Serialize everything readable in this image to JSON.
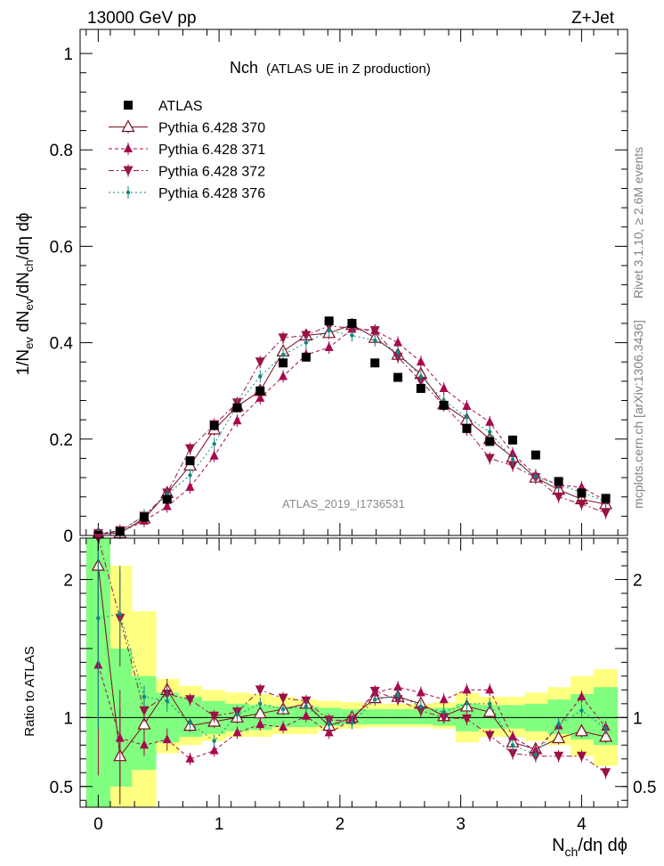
{
  "header": {
    "left": "13000 GeV pp",
    "right": "Z+Jet"
  },
  "main_title": {
    "main": "Nch",
    "sub": "(ATLAS UE in Z production)"
  },
  "ylabel_top": {
    "a": "1/N",
    "a_sub": "ev",
    "b": " dN",
    "b_sub": "ev",
    "c": "/dN",
    "c_sub": "ch",
    "d": "/dη dϕ"
  },
  "ylabel_ratio": "Ratio to ATLAS",
  "xlabel": {
    "a": "N",
    "a_sub": "ch",
    "b": "/dη dϕ"
  },
  "watermark": "ATLAS_2019_I1736531",
  "side_text": {
    "rivet_a": "Rivet 3.1.10, ",
    "rivet_b": "≥ 2.6M events",
    "mcplots": "mcplots.cern.ch [arXiv:1306.3436]"
  },
  "colors": {
    "atlas": "#000000",
    "p370": "#7b0c1e",
    "p371": "#a8084f",
    "p372": "#9b1246",
    "p376": "#11877f",
    "band_yellow": "#ffff80",
    "band_green": "#80ff80"
  },
  "chart_data": [
    {
      "type": "scatter",
      "panel": "main",
      "xlim": [
        -0.15,
        4.38
      ],
      "ylim": [
        0,
        1.05
      ],
      "yticks": [
        0,
        0.2,
        0.4,
        0.6,
        0.8,
        1
      ],
      "ytick_labels": [
        "0",
        "0.2",
        "0.4",
        "0.6",
        "0.8",
        "1"
      ],
      "x": [
        0,
        0.18,
        0.38,
        0.57,
        0.76,
        0.96,
        1.15,
        1.34,
        1.53,
        1.72,
        1.91,
        2.1,
        2.29,
        2.48,
        2.67,
        2.86,
        3.05,
        3.24,
        3.43,
        3.62,
        3.81,
        4.0,
        4.2
      ],
      "series": [
        {
          "name": "ATLAS",
          "marker": "square",
          "values": [
            0.0,
            0.008,
            0.038,
            0.075,
            0.155,
            0.228,
            0.265,
            0.3,
            0.358,
            0.37,
            0.445,
            0.44,
            0.358,
            0.328,
            0.305,
            0.27,
            0.222,
            0.195,
            0.198,
            0.167,
            0.112,
            0.088,
            0.077
          ]
        },
        {
          "name": "Pythia 6.428 370",
          "marker": "triangle-open",
          "values": [
            0.003,
            0.005,
            0.035,
            0.088,
            0.145,
            0.22,
            0.268,
            0.3,
            0.382,
            0.415,
            0.42,
            0.437,
            0.41,
            0.375,
            0.335,
            0.272,
            0.24,
            0.2,
            0.162,
            0.12,
            0.095,
            0.075,
            0.065
          ]
        },
        {
          "name": "Pythia 6.428 371",
          "marker": "triangle-up",
          "values": [
            0.004,
            0.007,
            0.03,
            0.06,
            0.1,
            0.165,
            0.238,
            0.285,
            0.33,
            0.375,
            0.39,
            0.428,
            0.425,
            0.4,
            0.36,
            0.305,
            0.268,
            0.235,
            0.17,
            0.125,
            0.105,
            0.1,
            0.072
          ]
        },
        {
          "name": "Pythia 6.428 372",
          "marker": "triangle-down",
          "values": [
            0.004,
            0.01,
            0.04,
            0.088,
            0.18,
            0.23,
            0.275,
            0.36,
            0.41,
            0.415,
            0.435,
            0.43,
            0.425,
            0.37,
            0.32,
            0.27,
            0.22,
            0.16,
            0.145,
            0.12,
            0.08,
            0.065,
            0.047
          ]
        },
        {
          "name": "Pythia 6.428 376",
          "marker": "dot",
          "values": [
            0.003,
            0.006,
            0.042,
            0.085,
            0.125,
            0.19,
            0.27,
            0.33,
            0.375,
            0.4,
            0.425,
            0.415,
            0.405,
            0.38,
            0.33,
            0.28,
            0.245,
            0.215,
            0.158,
            0.122,
            0.105,
            0.09,
            0.07
          ]
        }
      ]
    },
    {
      "type": "scatter",
      "panel": "ratio",
      "xlim": [
        -0.15,
        4.38
      ],
      "ylim": [
        0.35,
        2.3
      ],
      "yticks": [
        0.5,
        1,
        1.5,
        2
      ],
      "ytick_labels": [
        "0.5",
        "1",
        "2"
      ],
      "labeled_yticks": [
        0.5,
        1,
        2
      ],
      "xticks": [
        0,
        1,
        2,
        3,
        4
      ],
      "xtick_labels": [
        "0",
        "1",
        "2",
        "3",
        "4"
      ],
      "x": [
        0,
        0.18,
        0.38,
        0.57,
        0.76,
        0.96,
        1.15,
        1.34,
        1.53,
        1.72,
        1.91,
        2.1,
        2.29,
        2.48,
        2.67,
        2.86,
        3.05,
        3.24,
        3.43,
        3.62,
        3.81,
        4.0,
        4.2
      ],
      "bands": {
        "edges": [
          -0.1,
          0.1,
          0.28,
          0.48,
          0.67,
          0.86,
          1.05,
          1.25,
          1.44,
          1.63,
          1.82,
          2.01,
          2.2,
          2.39,
          2.58,
          2.77,
          2.96,
          3.15,
          3.34,
          3.53,
          3.72,
          3.91,
          4.1,
          4.3
        ],
        "yellow_low": [
          0.35,
          0.35,
          0.35,
          0.74,
          0.8,
          0.83,
          0.86,
          0.86,
          0.88,
          0.88,
          0.91,
          0.92,
          0.93,
          0.93,
          0.93,
          0.92,
          0.82,
          0.86,
          0.86,
          0.83,
          0.8,
          0.72,
          0.65
        ],
        "yellow_high": [
          2.3,
          2.1,
          1.77,
          1.28,
          1.23,
          1.2,
          1.18,
          1.17,
          1.15,
          1.13,
          1.12,
          1.11,
          1.1,
          1.1,
          1.1,
          1.11,
          1.18,
          1.15,
          1.15,
          1.18,
          1.22,
          1.3,
          1.35
        ],
        "green_low": [
          0.35,
          0.5,
          0.62,
          0.82,
          0.86,
          0.88,
          0.9,
          0.91,
          0.93,
          0.93,
          0.94,
          0.95,
          0.95,
          0.95,
          0.95,
          0.94,
          0.9,
          0.92,
          0.92,
          0.9,
          0.88,
          0.84,
          0.8
        ],
        "green_high": [
          2.3,
          1.5,
          1.3,
          1.18,
          1.15,
          1.12,
          1.1,
          1.09,
          1.08,
          1.08,
          1.07,
          1.06,
          1.06,
          1.06,
          1.06,
          1.07,
          1.1,
          1.09,
          1.09,
          1.1,
          1.13,
          1.17,
          1.22
        ]
      },
      "series": [
        {
          "name": "Pythia 6.428 370",
          "values": [
            2.1,
            0.72,
            0.95,
            1.2,
            0.94,
            0.97,
            1.0,
            1.03,
            1.06,
            1.1,
            0.94,
            1.0,
            1.14,
            1.15,
            1.1,
            1.01,
            1.08,
            1.04,
            0.82,
            0.77,
            0.85,
            0.9,
            0.86
          ]
        },
        {
          "name": "Pythia 6.428 371",
          "values": [
            1.38,
            0.85,
            0.8,
            0.84,
            0.7,
            0.76,
            0.89,
            0.95,
            0.93,
            1.01,
            0.89,
            0.98,
            1.18,
            1.22,
            1.18,
            1.13,
            1.2,
            1.2,
            0.86,
            0.76,
            0.94,
            1.15,
            0.93
          ]
        },
        {
          "name": "Pythia 6.428 372",
          "values": [
            2.3,
            1.72,
            1.05,
            1.17,
            1.13,
            1.01,
            1.04,
            1.2,
            1.14,
            1.12,
            0.98,
            0.98,
            1.19,
            1.13,
            1.05,
            1.0,
            0.99,
            0.87,
            0.74,
            0.72,
            0.72,
            0.72,
            0.6
          ]
        },
        {
          "name": "Pythia 6.428 376",
          "values": [
            1.72,
            1.75,
            1.15,
            1.12,
            0.96,
            0.83,
            1.02,
            1.1,
            1.06,
            1.08,
            0.95,
            0.96,
            1.13,
            1.16,
            1.08,
            1.04,
            1.1,
            1.1,
            0.8,
            0.73,
            0.95,
            1.05,
            0.92
          ]
        }
      ]
    }
  ]
}
